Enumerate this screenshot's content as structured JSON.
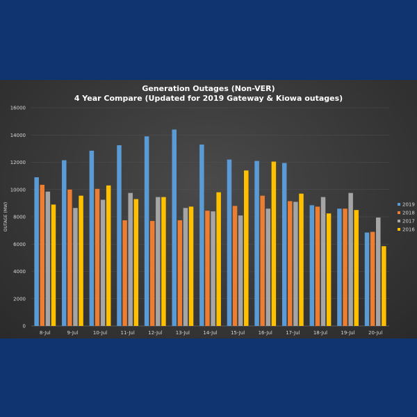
{
  "chart_data": {
    "type": "bar",
    "title": "Generation Outages (Non-VER)",
    "subtitle": "4 Year Compare (Updated for 2019 Gateway & Kiowa outages)",
    "ylabel": "OUTAGE (MW)",
    "xlabel": "",
    "ylim": [
      0,
      16000
    ],
    "yticks": [
      0,
      2000,
      4000,
      6000,
      8000,
      10000,
      12000,
      14000,
      16000
    ],
    "grid": true,
    "legend_position": "right",
    "categories": [
      "8-Jul",
      "9-Jul",
      "10-Jul",
      "11-Jul",
      "12-Jul",
      "13-Jul",
      "14-Jul",
      "15-Jul",
      "16-Jul",
      "17-Jul",
      "18-Jul",
      "19-Jul",
      "20-Jul"
    ],
    "series": [
      {
        "name": "2019",
        "color": "#5b9bd5",
        "values": [
          10900,
          12150,
          12850,
          13250,
          13900,
          14400,
          13300,
          12200,
          12100,
          11950,
          8850,
          8600,
          6850
        ]
      },
      {
        "name": "2018",
        "color": "#ed7d31",
        "values": [
          10350,
          10000,
          10050,
          7750,
          7700,
          7750,
          8450,
          8800,
          9550,
          9150,
          8750,
          8600,
          6900
        ]
      },
      {
        "name": "2017",
        "color": "#a5a5a5",
        "values": [
          9850,
          8650,
          9250,
          9750,
          9450,
          8650,
          8400,
          8100,
          8600,
          9100,
          9450,
          9750,
          7950
        ]
      },
      {
        "name": "2016",
        "color": "#ffc000",
        "values": [
          8900,
          9550,
          10300,
          9300,
          9450,
          8750,
          9800,
          11400,
          12050,
          9700,
          8250,
          8500,
          5850
        ]
      }
    ]
  }
}
